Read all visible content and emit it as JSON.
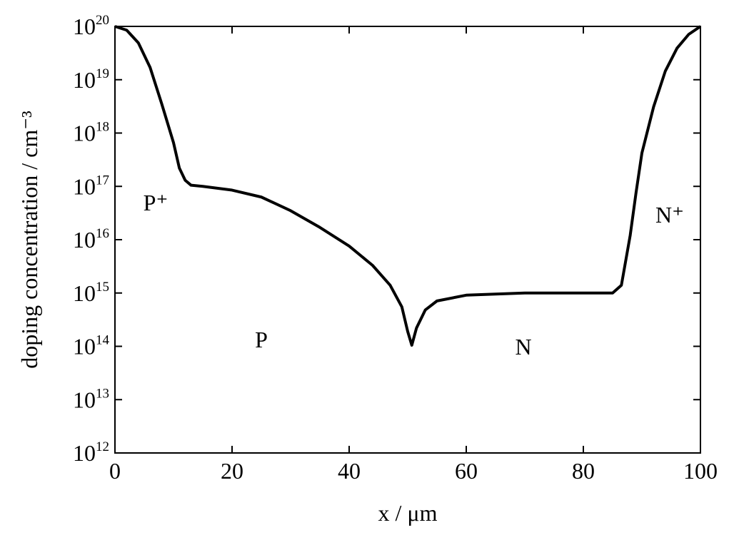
{
  "chart_data": {
    "type": "line",
    "x_label": "x / μm",
    "y_label": "doping concentration / cm⁻³",
    "log_y": true,
    "color": "#000000",
    "xlim": [
      0,
      100
    ],
    "xticks": [
      0,
      20,
      40,
      60,
      80,
      100
    ],
    "ylim": [
      1000000000000.0,
      1e+20
    ],
    "yticks": [
      {
        "value": 1000000000000.0,
        "label": [
          "10",
          "12"
        ]
      },
      {
        "value": 10000000000000.0,
        "label": [
          "10",
          "13"
        ]
      },
      {
        "value": 100000000000000.0,
        "label": [
          "10",
          "14"
        ]
      },
      {
        "value": 1000000000000000.0,
        "label": [
          "10",
          "15"
        ]
      },
      {
        "value": 1e+16,
        "label": [
          "10",
          "16"
        ]
      },
      {
        "value": 1e+17,
        "label": [
          "10",
          "17"
        ]
      },
      {
        "value": 1e+18,
        "label": [
          "10",
          "18"
        ]
      },
      {
        "value": 1e+19,
        "label": [
          "10",
          "19"
        ]
      },
      {
        "value": 1e+20,
        "label": [
          "10",
          "20"
        ]
      }
    ],
    "annotations": [
      "P⁺",
      "P",
      "N",
      "N⁺"
    ],
    "x": [
      0,
      2,
      4,
      6,
      8,
      10,
      11,
      12,
      13,
      15,
      20,
      25,
      30,
      35,
      40,
      44,
      47,
      49,
      50,
      50.7,
      51.5,
      53,
      55,
      60,
      70,
      80,
      85,
      86.5,
      88,
      89,
      90,
      92,
      94,
      96,
      98,
      100
    ],
    "values": [
      1e+20,
      8.5e+19,
      4.9e+19,
      1.7e+19,
      3.5e+18,
      6.6e+17,
      2.2e+17,
      1.3e+17,
      1.05e+17,
      1e+17,
      8.5e+16,
      6.3e+16,
      3.5e+16,
      1.7e+16,
      7600000000000000.0,
      3300000000000000.0,
      1400000000000000.0,
      550000000000000.0,
      190000000000000.0,
      105000000000000.0,
      220000000000000.0,
      480000000000000.0,
      710000000000000.0,
      910000000000000.0,
      1000000000000000.0,
      1000000000000000.0,
      1000000000000000.0,
      1400000000000000.0,
      1.2e+16,
      7.6e+16,
      4.2e+17,
      3.1e+18,
      1.45e+19,
      3.9e+19,
      7.1e+19,
      1e+20
    ]
  }
}
